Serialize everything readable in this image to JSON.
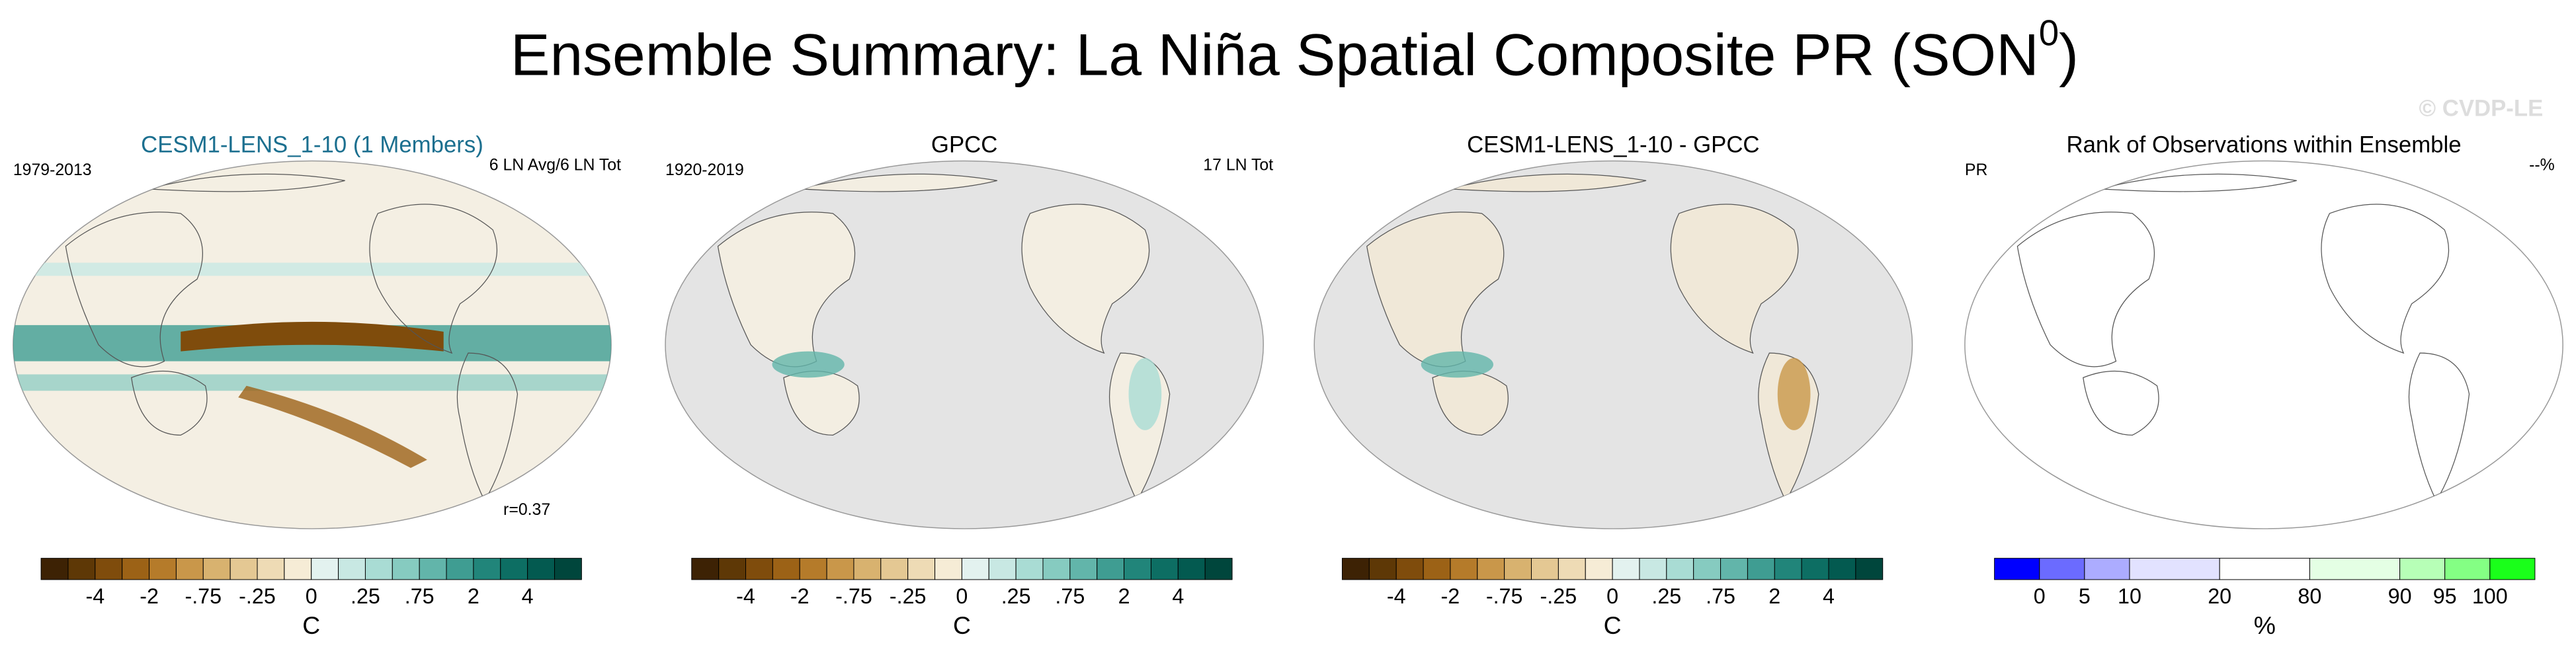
{
  "title": {
    "text": "Ensemble Summary: La Niña Spatial Composite PR (SON",
    "superscript": "0",
    "suffix": ")"
  },
  "watermark": "© CVDP-LE",
  "panels": [
    {
      "title": "CESM1-LENS_1-10 (1 Members)",
      "title_color": "#1b6f8f",
      "left_label": "1979-2013",
      "right_label": "6 LN Avg/6 LN Tot",
      "annotation": "r=0.37",
      "map": "model",
      "colorbar": {
        "colors": [
          "#3d2204",
          "#5e3806",
          "#7f4c0c",
          "#9c6216",
          "#b57b2a",
          "#c9974a",
          "#d8b26f",
          "#e4c893",
          "#eedbb5",
          "#f6ecd6",
          "#e3f2ef",
          "#c8e8e3",
          "#a9dcd4",
          "#86cbc0",
          "#62b5aa",
          "#3f9d92",
          "#21857a",
          "#0d6e63",
          "#035a50",
          "#00463c"
        ],
        "labels": [
          "-4",
          "-2",
          "-.75",
          "-.25",
          "0",
          ".25",
          ".75",
          "2",
          "4"
        ],
        "unit": "C"
      }
    },
    {
      "title": "GPCC",
      "title_color": "#000000",
      "left_label": "1920-2019",
      "right_label": "17 LN Tot",
      "map": "obs",
      "colorbar": {
        "colors": [
          "#3d2204",
          "#5e3806",
          "#7f4c0c",
          "#9c6216",
          "#b57b2a",
          "#c9974a",
          "#d8b26f",
          "#e4c893",
          "#eedbb5",
          "#f6ecd6",
          "#e3f2ef",
          "#c8e8e3",
          "#a9dcd4",
          "#86cbc0",
          "#62b5aa",
          "#3f9d92",
          "#21857a",
          "#0d6e63",
          "#035a50",
          "#00463c"
        ],
        "labels": [
          "-4",
          "-2",
          "-.75",
          "-.25",
          "0",
          ".25",
          ".75",
          "2",
          "4"
        ],
        "unit": "C"
      }
    },
    {
      "title": "CESM1-LENS_1-10 - GPCC",
      "title_color": "#000000",
      "map": "diff",
      "colorbar": {
        "colors": [
          "#3d2204",
          "#5e3806",
          "#7f4c0c",
          "#9c6216",
          "#b57b2a",
          "#c9974a",
          "#d8b26f",
          "#e4c893",
          "#eedbb5",
          "#f6ecd6",
          "#e3f2ef",
          "#c8e8e3",
          "#a9dcd4",
          "#86cbc0",
          "#62b5aa",
          "#3f9d92",
          "#21857a",
          "#0d6e63",
          "#035a50",
          "#00463c"
        ],
        "labels": [
          "-4",
          "-2",
          "-.75",
          "-.25",
          "0",
          ".25",
          ".75",
          "2",
          "4"
        ],
        "unit": "C"
      }
    },
    {
      "title": "Rank of Observations within Ensemble",
      "title_color": "#000000",
      "left_label": "PR",
      "right_label": "--%",
      "map": "rank",
      "colorbar": {
        "colors": [
          "#0000ff",
          "#6b6bff",
          "#acacff",
          "#e2e2ff",
          "#ffffff",
          "#e4ffe4",
          "#b7ffb7",
          "#84ff84",
          "#1aff1a"
        ],
        "labels": [
          "0",
          "5",
          "10",
          "20",
          "80",
          "90",
          "95",
          "100"
        ],
        "unit": "%"
      }
    }
  ]
}
